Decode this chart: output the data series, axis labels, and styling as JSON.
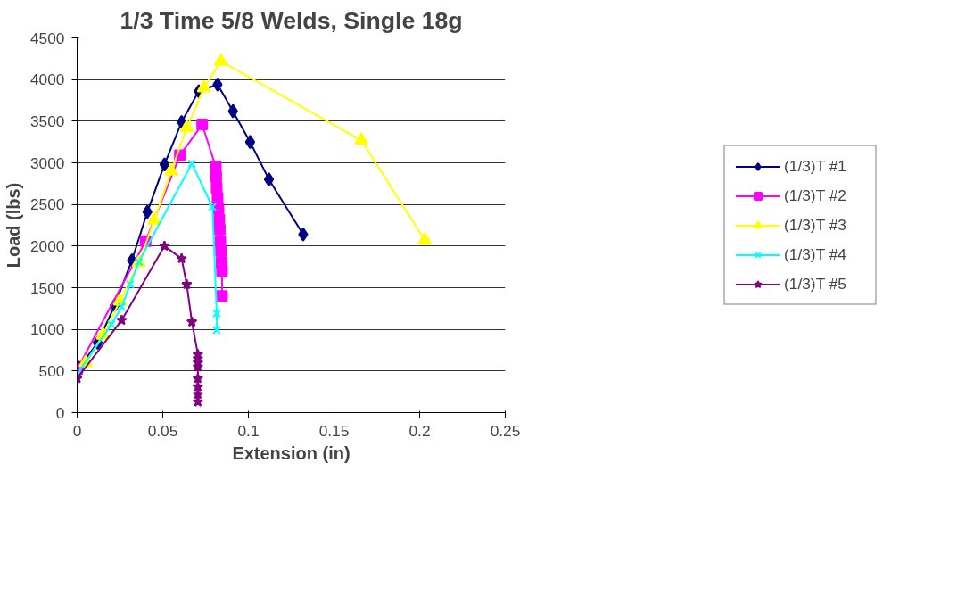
{
  "chart_data": {
    "type": "line",
    "title": "1/3 Time 5/8 Welds, Single 18g",
    "xlabel": "Extension (in)",
    "ylabel": "Load (lbs)",
    "xlim": [
      0,
      0.25
    ],
    "ylim": [
      0,
      4500
    ],
    "xticks": [
      0,
      0.05,
      0.1,
      0.15,
      0.2,
      0.25
    ],
    "yticks": [
      0,
      500,
      1000,
      1500,
      2000,
      2500,
      3000,
      3500,
      4000,
      4500
    ],
    "grid": "y",
    "legend": "right",
    "series": [
      {
        "name": "(1/3)T #1",
        "color": "#000080",
        "marker": "diamond",
        "x": [
          0.001,
          0.012,
          0.022,
          0.032,
          0.041,
          0.051,
          0.061,
          0.071,
          0.082,
          0.091,
          0.101,
          0.112,
          0.132
        ],
        "values": [
          540,
          840,
          1290,
          1830,
          2410,
          2980,
          3490,
          3860,
          3940,
          3620,
          3250,
          2800,
          2140
        ]
      },
      {
        "name": "(1/3)T #2",
        "color": "#ff00ff",
        "marker": "square",
        "x": [
          0,
          0.04,
          0.06,
          0.073,
          0.081,
          0.0812,
          0.0815,
          0.082,
          0.0825,
          0.083,
          0.0833,
          0.0836,
          0.084,
          0.0843,
          0.0846,
          0.0846
        ],
        "values": [
          520,
          2060,
          3090,
          3460,
          2950,
          2830,
          2700,
          2580,
          2450,
          2320,
          2200,
          2060,
          1940,
          1800,
          1700,
          1400
        ]
      },
      {
        "name": "(1/3)T #3",
        "color": "#ffff00",
        "marker": "triangle",
        "x": [
          0.005,
          0.015,
          0.025,
          0.036,
          0.045,
          0.055,
          0.064,
          0.074,
          0.084,
          0.166,
          0.203
        ],
        "values": [
          600,
          930,
          1340,
          1800,
          2310,
          2900,
          3420,
          3900,
          4220,
          3270,
          2070
        ]
      },
      {
        "name": "(1/3)T #4",
        "color": "#00ffff",
        "marker": "cross",
        "x": [
          0,
          0.02,
          0.026,
          0.031,
          0.036,
          0.067,
          0.079,
          0.0815,
          0.0815
        ],
        "values": [
          460,
          1060,
          1270,
          1540,
          1810,
          2990,
          2470,
          1190,
          990
        ]
      },
      {
        "name": "(1/3)T #5",
        "color": "#800080",
        "marker": "star",
        "x": [
          0,
          0.026,
          0.051,
          0.061,
          0.064,
          0.067,
          0.0705,
          0.0705,
          0.0705,
          0.0705,
          0.0705,
          0.0705,
          0.0705,
          0.0705
        ],
        "values": [
          410,
          1110,
          2000,
          1850,
          1540,
          1090,
          700,
          650,
          600,
          550,
          410,
          310,
          220,
          130
        ]
      }
    ]
  }
}
